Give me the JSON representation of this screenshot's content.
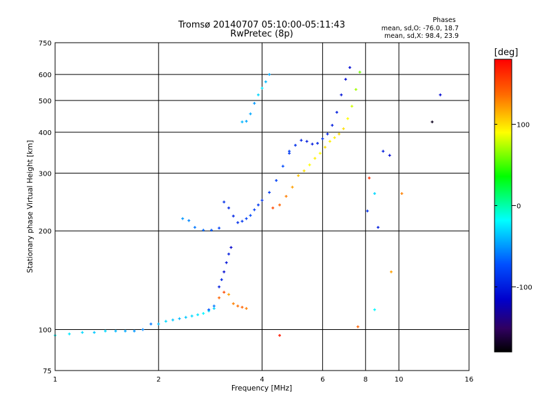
{
  "header": {
    "title": "Tromsø 20140707 05:10:00-05:11:43",
    "subtitle": "RwPretec (8p)",
    "stats_heading": "Phases",
    "stats_line1": "mean, sd,O: -76.0, 18.7",
    "stats_line2": "mean, sd,X:  98.4, 23.9"
  },
  "colorbar": {
    "unit_label": "[deg]",
    "ticks": [
      "100",
      "0",
      "-100"
    ],
    "tick_values": [
      100,
      0,
      -100
    ],
    "range": [
      -180,
      180
    ]
  },
  "chart_data": {
    "type": "scatter",
    "title": "Tromsø 20140707 05:10:00-05:11:43",
    "subtitle": "RwPretec (8p)",
    "xlabel": "Frequency [MHz]",
    "ylabel": "Stationary phase Virtual Height [km]",
    "x_scale": "log",
    "y_scale": "log",
    "xlim": [
      1,
      16
    ],
    "ylim": [
      75,
      750
    ],
    "grid": true,
    "x_ticks": [
      "1",
      "2",
      "4",
      "6",
      "8",
      "10",
      "16"
    ],
    "x_tick_values": [
      1,
      2,
      4,
      6,
      8,
      10,
      16
    ],
    "y_ticks": [
      "75",
      "100",
      "200",
      "300",
      "400",
      "500",
      "600",
      "750"
    ],
    "y_tick_values": [
      75,
      100,
      200,
      300,
      400,
      500,
      600,
      750
    ],
    "color_scale": "phase [deg], rainbow from black (-180) through blue, cyan, green, yellow to red (180)",
    "series": [
      {
        "x": [
          1.0,
          1.1,
          1.2,
          1.3,
          1.4,
          1.5,
          1.6,
          1.7,
          1.8,
          1.9,
          2.0,
          2.1,
          2.2,
          2.3,
          2.4,
          2.5,
          2.6,
          2.7,
          2.8,
          2.9
        ],
        "y": [
          96,
          97,
          98,
          98,
          99,
          99,
          99,
          99,
          100,
          104,
          104,
          106,
          107,
          108,
          109,
          110,
          111,
          112,
          114,
          116
        ],
        "phase": [
          -20,
          -25,
          -30,
          -35,
          -30,
          -40,
          -45,
          -50,
          -55,
          -60,
          -40,
          -30,
          -35,
          -40,
          -35,
          -30,
          -25,
          -20,
          -25,
          -30
        ]
      },
      {
        "x": [
          2.35,
          2.45,
          2.55,
          2.7,
          2.85,
          3.0,
          3.1,
          3.2,
          3.3,
          3.4,
          3.5,
          3.6,
          3.7,
          3.8,
          3.9,
          4.0,
          4.2,
          4.4,
          4.6,
          4.8
        ],
        "y": [
          218,
          215,
          205,
          201,
          201,
          204,
          245,
          235,
          222,
          212,
          214,
          218,
          223,
          232,
          240,
          248,
          262,
          285,
          315,
          350
        ],
        "phase": [
          -50,
          -55,
          -60,
          -65,
          -70,
          -80,
          -90,
          -95,
          -95,
          -90,
          -85,
          -80,
          -75,
          -80,
          -85,
          -90,
          -85,
          -80,
          -75,
          -80
        ]
      },
      {
        "x": [
          4.8,
          5.0,
          5.2,
          5.4,
          5.6,
          5.8,
          6.0,
          6.2,
          6.4,
          6.6,
          6.8,
          7.0,
          7.2
        ],
        "y": [
          345,
          365,
          378,
          375,
          368,
          370,
          382,
          395,
          420,
          460,
          520,
          580,
          630
        ],
        "phase": [
          -85,
          -90,
          -95,
          -100,
          -100,
          -95,
          -90,
          -95,
          -100,
          -100,
          -105,
          -110,
          -110
        ]
      },
      {
        "x": [
          4.3,
          4.5,
          4.7,
          4.9,
          5.1,
          5.3,
          5.5,
          5.7,
          5.9,
          6.1,
          6.3,
          6.5,
          6.7,
          6.9,
          7.1,
          7.3,
          7.5,
          7.7
        ],
        "y": [
          235,
          240,
          255,
          272,
          295,
          305,
          318,
          333,
          345,
          360,
          375,
          385,
          395,
          410,
          440,
          480,
          540,
          610
        ],
        "phase": [
          150,
          140,
          130,
          120,
          110,
          100,
          90,
          95,
          90,
          100,
          95,
          95,
          100,
          100,
          90,
          80,
          70,
          60
        ]
      },
      {
        "x": [
          3.5,
          3.6,
          3.7,
          3.8,
          3.9,
          4.0,
          4.1,
          4.2
        ],
        "y": [
          430,
          432,
          455,
          490,
          520,
          545,
          570,
          600
        ],
        "phase": [
          -40,
          -45,
          -45,
          -50,
          -30,
          -25,
          -40,
          -45
        ]
      },
      {
        "x": [
          2.8,
          2.9,
          3.0,
          3.1,
          3.2,
          3.3,
          3.4,
          3.5,
          3.6
        ],
        "y": [
          115,
          118,
          125,
          130,
          128,
          120,
          118,
          117,
          116
        ],
        "phase": [
          -70,
          -60,
          140,
          150,
          120,
          130,
          135,
          140,
          130
        ]
      },
      {
        "x": [
          3.0,
          3.05,
          3.1,
          3.15,
          3.2,
          3.25
        ],
        "y": [
          135,
          142,
          150,
          160,
          170,
          178
        ],
        "phase": [
          -100,
          -95,
          -110,
          -105,
          -100,
          -115
        ]
      }
    ],
    "scattered_points": [
      {
        "x": 8.1,
        "y": 230,
        "phase": -90
      },
      {
        "x": 8.2,
        "y": 290,
        "phase": 160
      },
      {
        "x": 8.5,
        "y": 260,
        "phase": -30
      },
      {
        "x": 8.7,
        "y": 205,
        "phase": -100
      },
      {
        "x": 9.0,
        "y": 350,
        "phase": -100
      },
      {
        "x": 9.4,
        "y": 340,
        "phase": -110
      },
      {
        "x": 10.2,
        "y": 260,
        "phase": 130
      },
      {
        "x": 12.5,
        "y": 430,
        "phase": -170
      },
      {
        "x": 13.2,
        "y": 520,
        "phase": -110
      },
      {
        "x": 8.5,
        "y": 115,
        "phase": -20
      },
      {
        "x": 9.5,
        "y": 150,
        "phase": 120
      },
      {
        "x": 4.5,
        "y": 96,
        "phase": 170
      },
      {
        "x": 7.6,
        "y": 102,
        "phase": 140
      }
    ]
  }
}
